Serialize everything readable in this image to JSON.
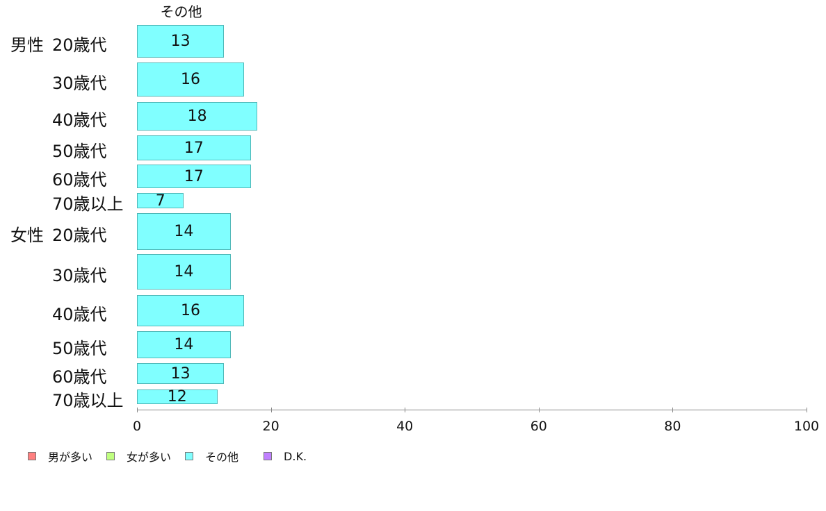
{
  "chart_data": {
    "type": "bar",
    "orientation": "horizontal",
    "title": "その他",
    "groups": [
      "男性",
      "女性"
    ],
    "categories": [
      "20歳代",
      "30歳代",
      "40歳代",
      "50歳代",
      "60歳代",
      "70歳以上",
      "20歳代",
      "30歳代",
      "40歳代",
      "50歳代",
      "60歳代",
      "70歳以上"
    ],
    "category_groups": [
      "男性",
      "男性",
      "男性",
      "男性",
      "男性",
      "男性",
      "女性",
      "女性",
      "女性",
      "女性",
      "女性",
      "女性"
    ],
    "series": [
      {
        "name": "その他",
        "color": "#80ffff",
        "values": [
          13,
          16,
          18,
          17,
          17,
          7,
          14,
          14,
          16,
          14,
          13,
          12
        ]
      }
    ],
    "xlim": [
      0,
      100
    ],
    "xticks": [
      "0",
      "20",
      "40",
      "60",
      "80",
      "100"
    ],
    "grid": false,
    "legend_placement": "bottom-left",
    "legend": [
      {
        "label": "男が多い",
        "color": "#ff8080"
      },
      {
        "label": "女が多い",
        "color": "#c0ff80"
      },
      {
        "label": "その他",
        "color": "#80ffff"
      },
      {
        "label": "D.K.",
        "color": "#c080ff"
      }
    ]
  }
}
